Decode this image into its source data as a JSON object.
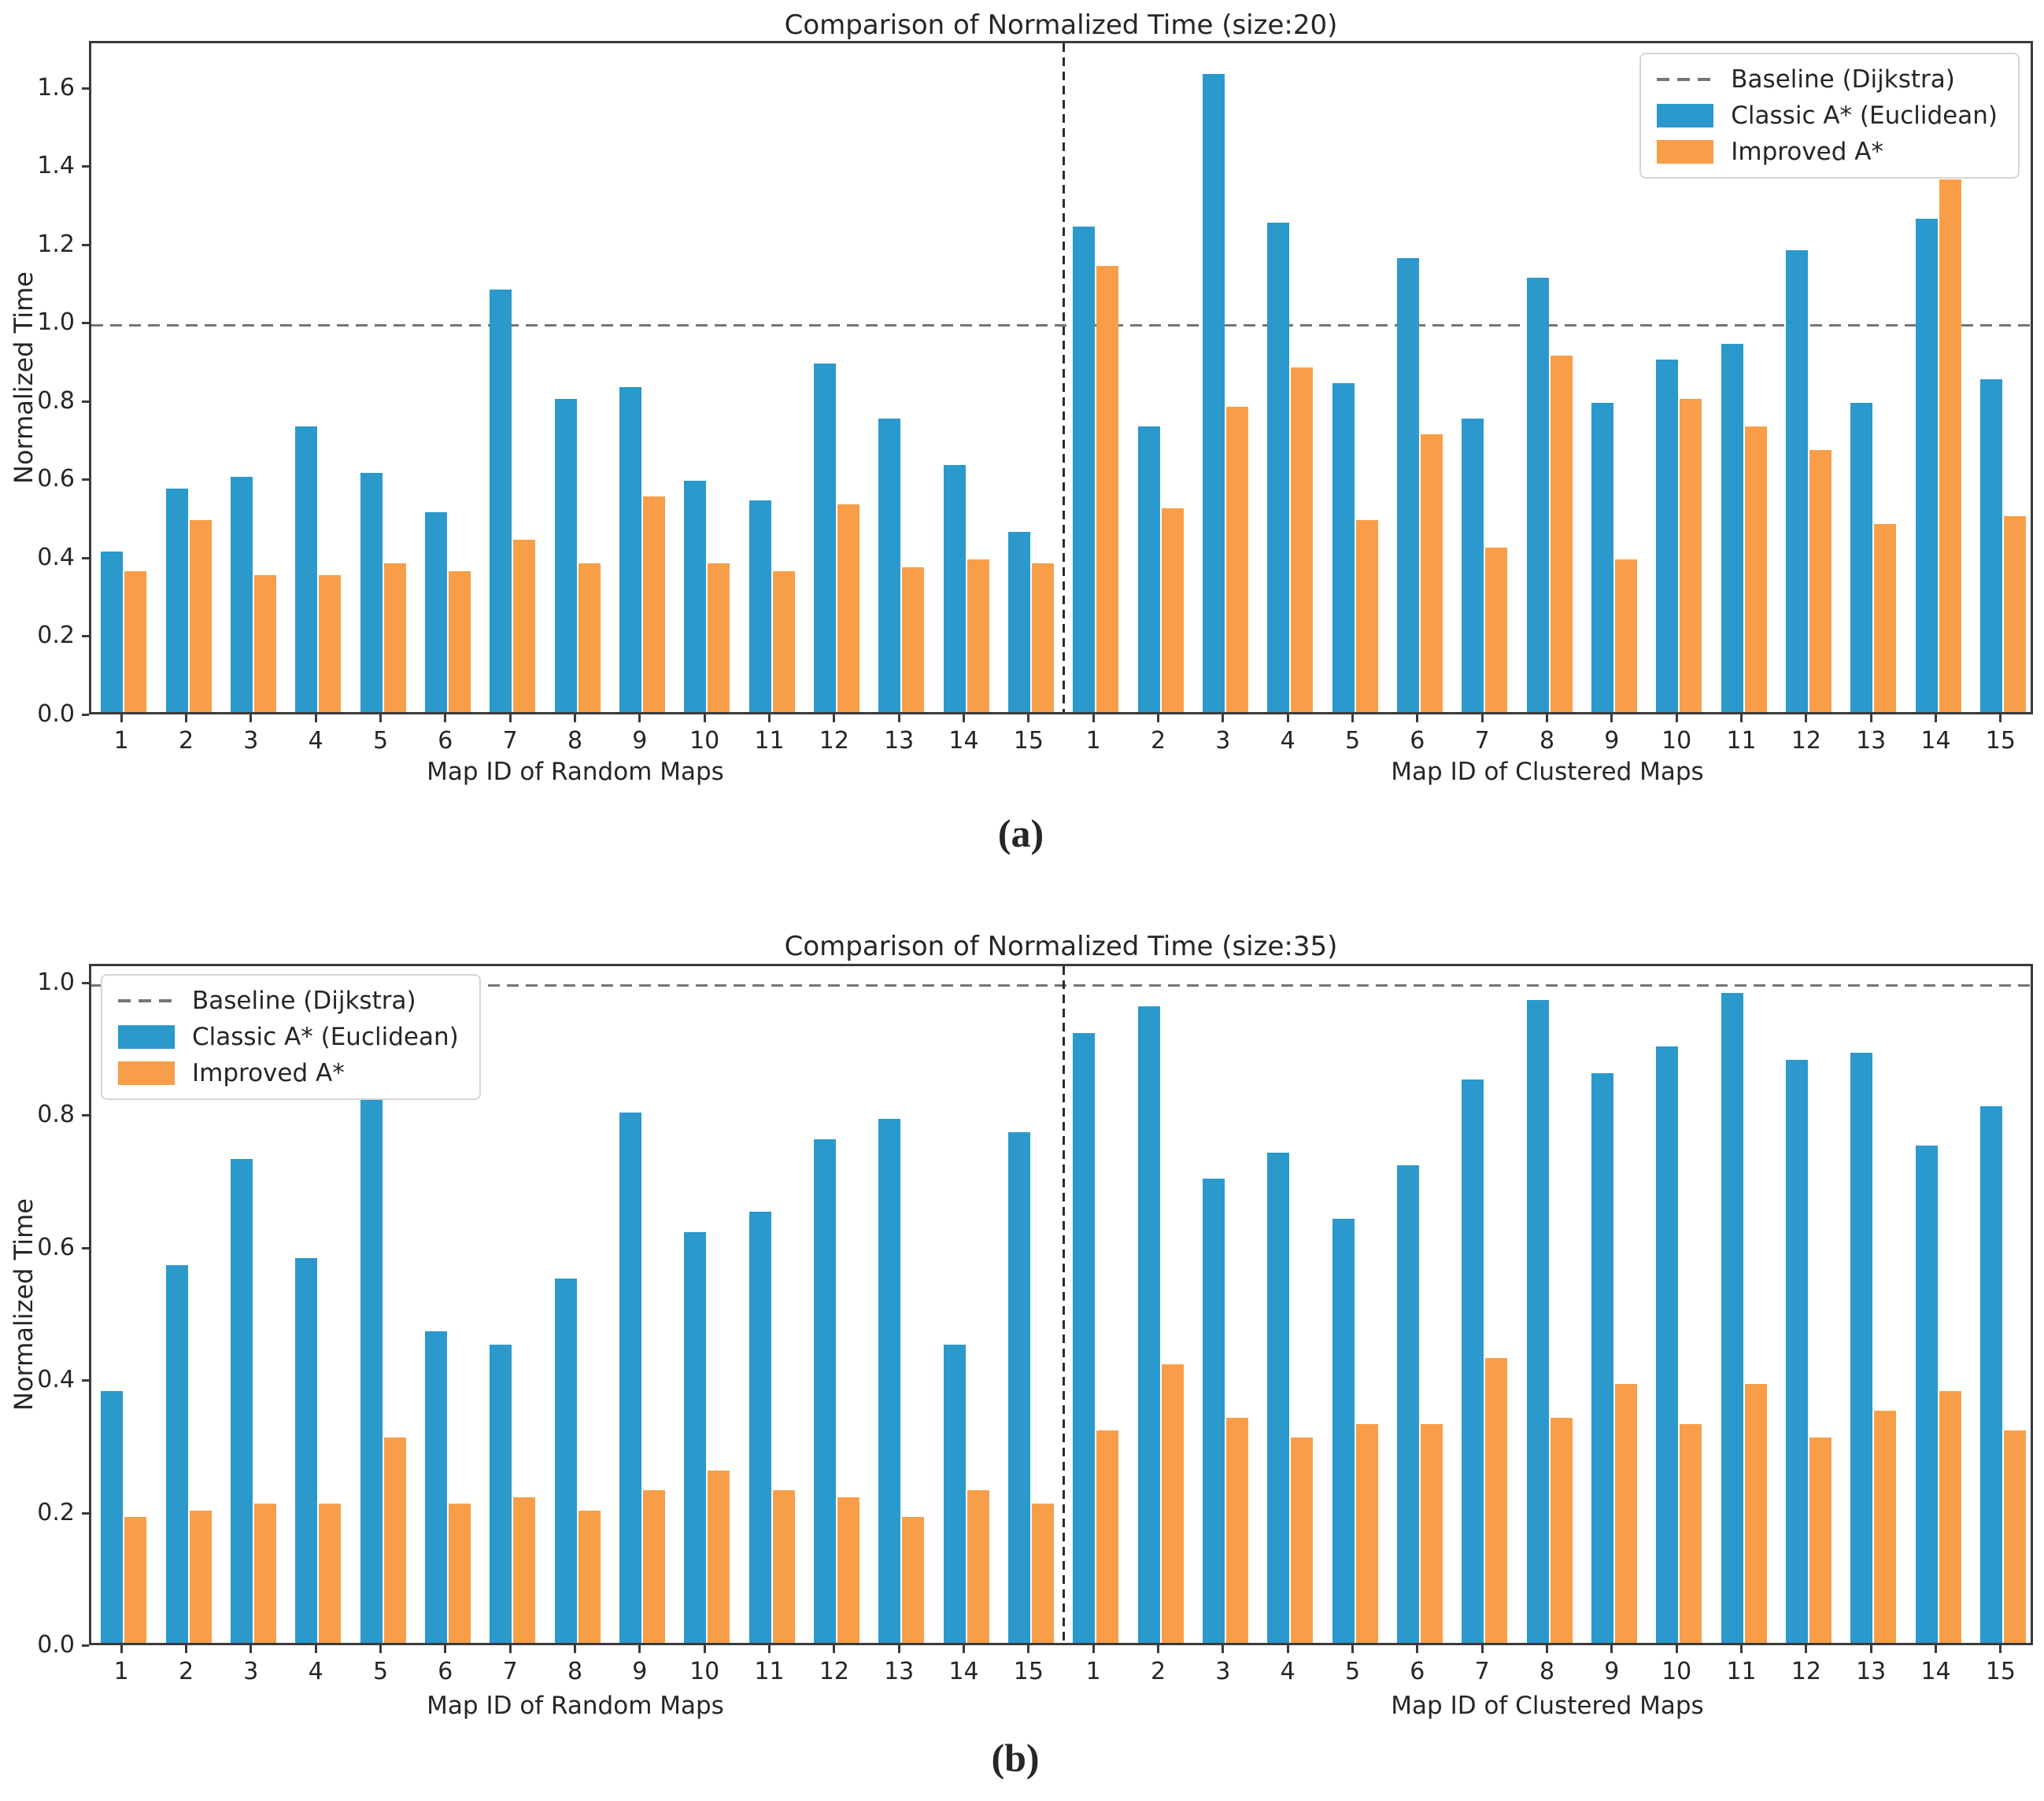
{
  "colors": {
    "classic": "#2b99cc",
    "improved": "#f89e48",
    "baseline": "#757575",
    "divider": "#2b2b2b",
    "spine": "#3a3a3a",
    "text": "#262626"
  },
  "legend": {
    "baseline_label": "Baseline (Dijkstra)",
    "classic_label": "Classic A* (Euclidean)",
    "improved_label": "Improved A*"
  },
  "chart_data": [
    {
      "id": "a",
      "type": "bar",
      "title": "Comparison of Normalized Time (size:20)",
      "ylabel": "Normalized Time",
      "caption": "(a)",
      "ylim": [
        0,
        1.72
      ],
      "yticks": [
        0.0,
        0.2,
        0.4,
        0.6,
        0.8,
        1.0,
        1.2,
        1.4,
        1.6
      ],
      "baseline_value": 1.0,
      "grid": false,
      "legend_position": "top-right",
      "legend_entries": [
        "Baseline (Dijkstra)",
        "Classic A* (Euclidean)",
        "Improved A*"
      ],
      "groups": [
        {
          "xlabel": "Map ID of Random Maps",
          "categories": [
            "1",
            "2",
            "3",
            "4",
            "5",
            "6",
            "7",
            "8",
            "9",
            "10",
            "11",
            "12",
            "13",
            "14",
            "15"
          ],
          "series": [
            {
              "name": "Classic A* (Euclidean)",
              "values": [
                0.41,
                0.57,
                0.6,
                0.73,
                0.61,
                0.51,
                1.08,
                0.8,
                0.83,
                0.59,
                0.54,
                0.89,
                0.75,
                0.63,
                0.46
              ]
            },
            {
              "name": "Improved A*",
              "values": [
                0.36,
                0.49,
                0.35,
                0.35,
                0.38,
                0.36,
                0.44,
                0.38,
                0.55,
                0.38,
                0.36,
                0.53,
                0.37,
                0.39,
                0.38
              ]
            }
          ]
        },
        {
          "xlabel": "Map ID of Clustered Maps",
          "categories": [
            "1",
            "2",
            "3",
            "4",
            "5",
            "6",
            "7",
            "8",
            "9",
            "10",
            "11",
            "12",
            "13",
            "14",
            "15"
          ],
          "series": [
            {
              "name": "Classic A* (Euclidean)",
              "values": [
                1.24,
                0.73,
                1.63,
                1.25,
                0.84,
                1.16,
                0.75,
                1.11,
                0.79,
                0.9,
                0.94,
                1.18,
                0.79,
                1.26,
                0.85
              ]
            },
            {
              "name": "Improved A*",
              "values": [
                1.14,
                0.52,
                0.78,
                0.88,
                0.49,
                0.71,
                0.42,
                0.91,
                0.39,
                0.8,
                0.73,
                0.67,
                0.48,
                1.36,
                0.5
              ]
            }
          ]
        }
      ]
    },
    {
      "id": "b",
      "type": "bar",
      "title": "Comparison of Normalized Time (size:35)",
      "ylabel": "Normalized Time",
      "caption": "(b)",
      "ylim": [
        0,
        1.028
      ],
      "yticks": [
        0.0,
        0.2,
        0.4,
        0.6,
        0.8,
        1.0
      ],
      "baseline_value": 1.0,
      "grid": false,
      "legend_position": "top-left",
      "legend_entries": [
        "Baseline (Dijkstra)",
        "Classic A* (Euclidean)",
        "Improved A*"
      ],
      "groups": [
        {
          "xlabel": "Map ID of Random Maps",
          "categories": [
            "1",
            "2",
            "3",
            "4",
            "5",
            "6",
            "7",
            "8",
            "9",
            "10",
            "11",
            "12",
            "13",
            "14",
            "15"
          ],
          "series": [
            {
              "name": "Classic A* (Euclidean)",
              "values": [
                0.38,
                0.57,
                0.73,
                0.58,
                0.85,
                0.47,
                0.45,
                0.55,
                0.8,
                0.62,
                0.65,
                0.76,
                0.79,
                0.45,
                0.77
              ]
            },
            {
              "name": "Improved A*",
              "values": [
                0.19,
                0.2,
                0.21,
                0.21,
                0.31,
                0.21,
                0.22,
                0.2,
                0.23,
                0.26,
                0.23,
                0.22,
                0.19,
                0.23,
                0.21
              ]
            }
          ]
        },
        {
          "xlabel": "Map ID of Clustered Maps",
          "categories": [
            "1",
            "2",
            "3",
            "4",
            "5",
            "6",
            "7",
            "8",
            "9",
            "10",
            "11",
            "12",
            "13",
            "14",
            "15"
          ],
          "series": [
            {
              "name": "Classic A* (Euclidean)",
              "values": [
                0.92,
                0.96,
                0.7,
                0.74,
                0.64,
                0.72,
                0.85,
                0.97,
                0.86,
                0.9,
                0.98,
                0.88,
                0.89,
                0.75,
                0.81
              ]
            },
            {
              "name": "Improved A*",
              "values": [
                0.32,
                0.42,
                0.34,
                0.31,
                0.33,
                0.33,
                0.43,
                0.34,
                0.39,
                0.33,
                0.39,
                0.31,
                0.35,
                0.38,
                0.32
              ]
            }
          ]
        }
      ]
    }
  ]
}
